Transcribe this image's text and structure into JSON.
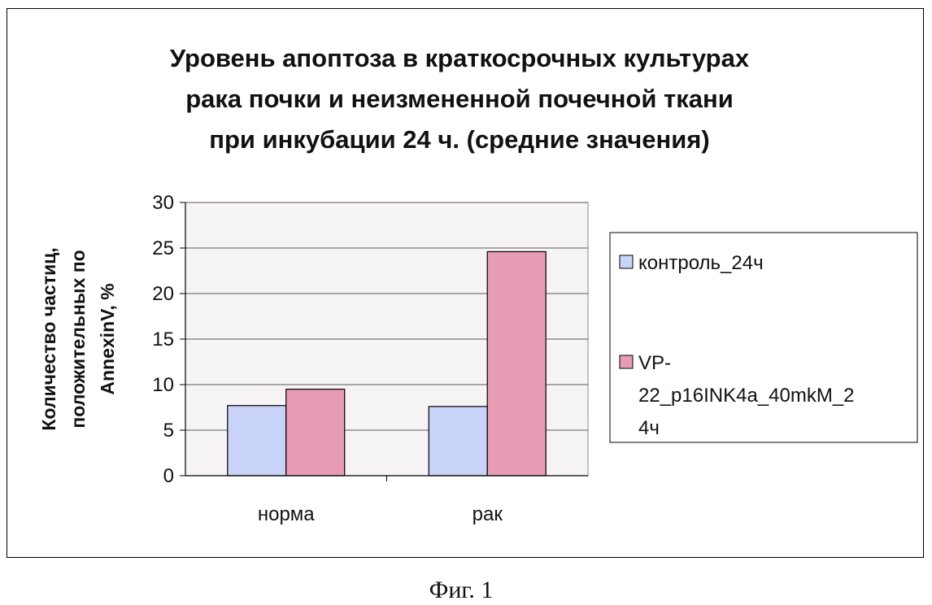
{
  "chart_data": {
    "type": "bar",
    "title_lines": [
      "Уровень апоптоза в краткосрочных культурах",
      "рака почки и неизмененной почечной ткани",
      "при инкубации 24 ч. (средние значения)"
    ],
    "ylabel_lines": [
      "Количество частиц,",
      "положительных по",
      "AnnexinV, %"
    ],
    "xlabel": "",
    "categories": [
      "норма",
      "рак"
    ],
    "ylim": [
      0,
      30
    ],
    "yticks": [
      0,
      5,
      10,
      15,
      20,
      25,
      30
    ],
    "grid": true,
    "legend_position": "right",
    "series": [
      {
        "name": "контроль_24ч",
        "legend_lines": [
          "контроль_24ч"
        ],
        "values": [
          7.7,
          7.6
        ],
        "color": "#c9d3f7"
      },
      {
        "name": "VP-22_p16INK4a_40mkM_24ч",
        "legend_lines": [
          "VP-",
          "22_p16INK4a_40mkM_2",
          "4ч"
        ],
        "values": [
          9.5,
          24.6
        ],
        "color": "#e89cb4"
      }
    ],
    "plot_background": "#f7f4f5"
  },
  "caption": "Фиг. 1"
}
